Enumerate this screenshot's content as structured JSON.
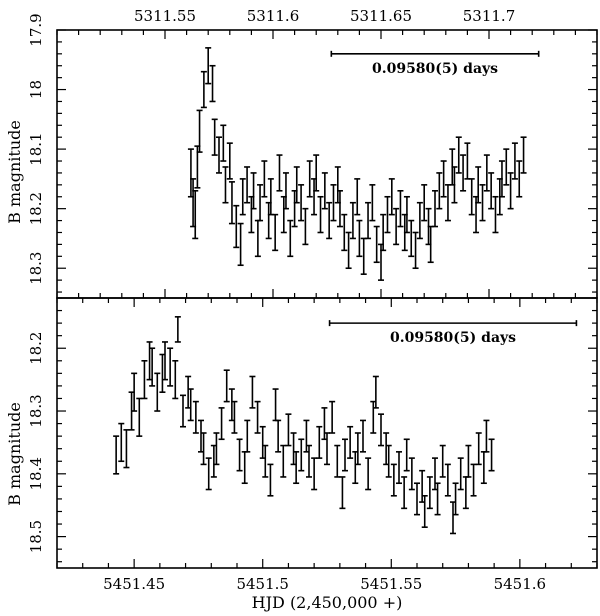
{
  "chart_data": [
    {
      "type": "scatter",
      "panel": "top",
      "title": "",
      "xlabel": "",
      "ylabel": "B magnitude",
      "x_axis_position": "top",
      "xlim": [
        5311.5,
        5311.75
      ],
      "ylim": [
        18.35,
        17.9
      ],
      "y_inverted": true,
      "x_ticks": [
        5311.55,
        5311.6,
        5311.65,
        5311.7
      ],
      "x_tick_labels": [
        "5311.55",
        "5311.6",
        "5311.65",
        "5311.7"
      ],
      "y_ticks": [
        17.9,
        18.0,
        18.1,
        18.2,
        18.3
      ],
      "y_tick_labels": [
        "17.9",
        "18",
        "18.1",
        "18.2",
        "18.3"
      ],
      "annotation": {
        "text": "0.09580(5) days",
        "bar_x": [
          5311.627,
          5311.723
        ],
        "bar_y": 17.94
      },
      "series": [
        {
          "style": "errorbar",
          "x": [
            5311.562,
            5311.563,
            5311.564,
            5311.565,
            5311.566,
            5311.568,
            5311.57,
            5311.572,
            5311.573,
            5311.575,
            5311.577,
            5311.578,
            5311.58,
            5311.581,
            5311.583,
            5311.585,
            5311.586,
            5311.588,
            5311.59,
            5311.591,
            5311.593,
            5311.594,
            5311.596,
            5311.598,
            5311.599,
            5311.601,
            5311.603,
            5311.605,
            5311.606,
            5311.608,
            5311.61,
            5311.611,
            5311.613,
            5311.615,
            5311.617,
            5311.619,
            5311.62,
            5311.622,
            5311.624,
            5311.626,
            5311.628,
            5311.63,
            5311.631,
            5311.633,
            5311.635,
            5311.637,
            5311.639,
            5311.64,
            5311.642,
            5311.644,
            5311.646,
            5311.648,
            5311.65,
            5311.651,
            5311.653,
            5311.655,
            5311.657,
            5311.659,
            5311.661,
            5311.662,
            5311.664,
            5311.666,
            5311.668,
            5311.67,
            5311.672,
            5311.673,
            5311.675,
            5311.677,
            5311.679,
            5311.681,
            5311.683,
            5311.684,
            5311.686,
            5311.688,
            5311.69,
            5311.692,
            5311.694,
            5311.695,
            5311.697,
            5311.699,
            5311.701,
            5311.703,
            5311.705,
            5311.706,
            5311.708,
            5311.71,
            5311.712,
            5311.714,
            5311.716
          ],
          "y": [
            18.14,
            18.19,
            18.21,
            18.13,
            18.07,
            18.0,
            17.96,
            17.99,
            18.08,
            18.11,
            18.09,
            18.16,
            18.12,
            18.19,
            18.23,
            18.26,
            18.18,
            18.16,
            18.21,
            18.17,
            18.25,
            18.19,
            18.15,
            18.22,
            18.18,
            18.24,
            18.14,
            18.21,
            18.17,
            18.25,
            18.2,
            18.16,
            18.19,
            18.23,
            18.15,
            18.18,
            18.14,
            18.21,
            18.17,
            18.22,
            18.19,
            18.16,
            18.2,
            18.24,
            18.27,
            18.22,
            18.18,
            18.25,
            18.28,
            18.22,
            18.19,
            18.26,
            18.29,
            18.24,
            18.21,
            18.18,
            18.23,
            18.2,
            18.24,
            18.21,
            18.25,
            18.27,
            18.22,
            18.19,
            18.23,
            18.26,
            18.2,
            18.17,
            18.15,
            18.19,
            18.13,
            18.16,
            18.11,
            18.14,
            18.12,
            18.18,
            18.21,
            18.16,
            18.19,
            18.14,
            18.17,
            18.21,
            18.18,
            18.15,
            18.13,
            18.17,
            18.12,
            18.15,
            18.11
          ],
          "err": [
            0.04,
            0.04,
            0.04,
            0.035,
            0.035,
            0.03,
            0.03,
            0.03,
            0.03,
            0.03,
            0.03,
            0.03,
            0.03,
            0.035,
            0.035,
            0.035,
            0.03,
            0.03,
            0.03,
            0.03,
            0.03,
            0.03,
            0.03,
            0.03,
            0.03,
            0.03,
            0.03,
            0.03,
            0.03,
            0.03,
            0.03,
            0.03,
            0.03,
            0.03,
            0.03,
            0.03,
            0.03,
            0.03,
            0.03,
            0.03,
            0.03,
            0.03,
            0.03,
            0.03,
            0.03,
            0.03,
            0.03,
            0.03,
            0.03,
            0.03,
            0.03,
            0.03,
            0.03,
            0.03,
            0.03,
            0.03,
            0.03,
            0.03,
            0.03,
            0.03,
            0.03,
            0.03,
            0.03,
            0.03,
            0.03,
            0.03,
            0.03,
            0.03,
            0.03,
            0.03,
            0.03,
            0.03,
            0.03,
            0.03,
            0.03,
            0.03,
            0.03,
            0.03,
            0.03,
            0.03,
            0.03,
            0.03,
            0.03,
            0.03,
            0.03,
            0.03,
            0.03,
            0.03,
            0.03
          ]
        }
      ]
    },
    {
      "type": "scatter",
      "panel": "bottom",
      "title": "",
      "xlabel": "HJD (2,450,000 +)",
      "ylabel": "B magnitude",
      "x_axis_position": "bottom",
      "xlim": [
        5451.42,
        5451.63
      ],
      "ylim": [
        18.55,
        18.12
      ],
      "y_inverted": true,
      "x_ticks": [
        5451.45,
        5451.5,
        5451.55,
        5451.6
      ],
      "x_tick_labels": [
        "5451.45",
        "5451.5",
        "5451.55",
        "5451.6"
      ],
      "y_ticks": [
        18.2,
        18.3,
        18.4,
        18.5
      ],
      "y_tick_labels": [
        "18.2",
        "18.3",
        "18.4",
        "18.5"
      ],
      "annotation": {
        "text": "0.09580(5) days",
        "bar_x": [
          5451.526,
          5451.622
        ],
        "bar_y": 18.16
      },
      "series": [
        {
          "style": "errorbar",
          "x": [
            5451.443,
            5451.445,
            5451.447,
            5451.449,
            5451.45,
            5451.452,
            5451.454,
            5451.456,
            5451.457,
            5451.459,
            5451.461,
            5451.462,
            5451.464,
            5451.466,
            5451.467,
            5451.469,
            5451.471,
            5451.472,
            5451.474,
            5451.476,
            5451.477,
            5451.479,
            5451.481,
            5451.482,
            5451.484,
            5451.486,
            5451.488,
            5451.489,
            5451.491,
            5451.493,
            5451.494,
            5451.496,
            5451.498,
            5451.5,
            5451.501,
            5451.503,
            5451.505,
            5451.506,
            5451.508,
            5451.51,
            5451.512,
            5451.513,
            5451.515,
            5451.517,
            5451.518,
            5451.52,
            5451.522,
            5451.524,
            5451.525,
            5451.527,
            5451.529,
            5451.531,
            5451.532,
            5451.534,
            5451.536,
            5451.537,
            5451.539,
            5451.541,
            5451.543,
            5451.544,
            5451.546,
            5451.548,
            5451.549,
            5451.551,
            5451.553,
            5451.555,
            5451.556,
            5451.558,
            5451.56,
            5451.562,
            5451.563,
            5451.565,
            5451.567,
            5451.568,
            5451.57,
            5451.572,
            5451.574,
            5451.575,
            5451.577,
            5451.579,
            5451.58,
            5451.582,
            5451.584,
            5451.586,
            5451.587,
            5451.589
          ],
          "y": [
            18.37,
            18.35,
            18.36,
            18.3,
            18.27,
            18.31,
            18.25,
            18.22,
            18.23,
            18.27,
            18.24,
            18.22,
            18.23,
            18.25,
            18.17,
            18.3,
            18.27,
            18.29,
            18.31,
            18.34,
            18.36,
            18.4,
            18.38,
            18.36,
            18.32,
            18.26,
            18.29,
            18.31,
            18.37,
            18.39,
            18.34,
            18.27,
            18.31,
            18.35,
            18.38,
            18.41,
            18.29,
            18.34,
            18.38,
            18.33,
            18.36,
            18.39,
            18.37,
            18.34,
            18.38,
            18.4,
            18.35,
            18.32,
            18.36,
            18.31,
            18.38,
            18.43,
            18.37,
            18.35,
            18.39,
            18.36,
            18.34,
            18.4,
            18.31,
            18.27,
            18.33,
            18.36,
            18.38,
            18.41,
            18.39,
            18.43,
            18.37,
            18.4,
            18.44,
            18.42,
            18.46,
            18.43,
            18.4,
            18.44,
            18.38,
            18.41,
            18.47,
            18.44,
            18.4,
            18.43,
            18.38,
            18.41,
            18.36,
            18.39,
            18.34,
            18.37
          ],
          "err": [
            0.03,
            0.03,
            0.03,
            0.03,
            0.03,
            0.03,
            0.03,
            0.03,
            0.03,
            0.03,
            0.03,
            0.03,
            0.03,
            0.03,
            0.02,
            0.025,
            0.025,
            0.025,
            0.025,
            0.025,
            0.025,
            0.025,
            0.025,
            0.025,
            0.025,
            0.025,
            0.025,
            0.025,
            0.025,
            0.025,
            0.025,
            0.025,
            0.025,
            0.025,
            0.025,
            0.025,
            0.025,
            0.025,
            0.025,
            0.025,
            0.025,
            0.025,
            0.025,
            0.025,
            0.025,
            0.025,
            0.025,
            0.025,
            0.025,
            0.025,
            0.025,
            0.025,
            0.025,
            0.025,
            0.025,
            0.025,
            0.025,
            0.025,
            0.025,
            0.025,
            0.025,
            0.025,
            0.025,
            0.025,
            0.025,
            0.025,
            0.025,
            0.025,
            0.025,
            0.025,
            0.025,
            0.025,
            0.025,
            0.025,
            0.025,
            0.025,
            0.025,
            0.025,
            0.025,
            0.025,
            0.025,
            0.025,
            0.025,
            0.025,
            0.025,
            0.025
          ]
        }
      ]
    }
  ]
}
